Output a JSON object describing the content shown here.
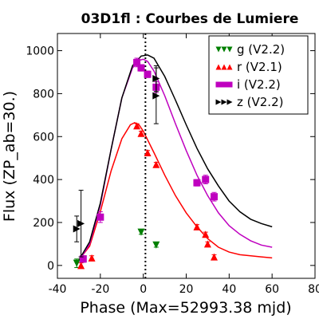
{
  "chart_data": {
    "type": "scatter",
    "title": "03D1fl : Courbes de Lumiere",
    "xlabel": "Phase (Max=52993.38 mjd)",
    "ylabel": "Flux (ZP_ab=30.)",
    "xlim": [
      -40,
      80
    ],
    "ylim": [
      -60,
      1080
    ],
    "xticks": [
      -40,
      -20,
      0,
      20,
      40,
      60,
      80
    ],
    "yticks": [
      0,
      200,
      400,
      600,
      800,
      1000
    ],
    "xtick_labels": [
      "-40",
      "-20",
      "0",
      "20",
      "40",
      "60",
      "80"
    ],
    "ytick_labels": [
      "0",
      "200",
      "400",
      "600",
      "800",
      "1000"
    ],
    "max_phase_line": 1,
    "legend_position": "top-right",
    "series": [
      {
        "name": "g (V2.2)",
        "color": "#007f00",
        "marker": "triangle-down",
        "points": [
          {
            "x": -31,
            "y": 10,
            "err": 20
          },
          {
            "x": -28,
            "y": 30,
            "err": 15
          },
          {
            "x": -1,
            "y": 155,
            "err": 10
          },
          {
            "x": 6,
            "y": 95,
            "err": 10
          }
        ],
        "curve": []
      },
      {
        "name": "r (V2.1)",
        "color": "#ff0000",
        "marker": "triangle-up",
        "points": [
          {
            "x": -29,
            "y": 0,
            "err": 12
          },
          {
            "x": -24,
            "y": 35,
            "err": 10
          },
          {
            "x": -3,
            "y": 650,
            "err": 10
          },
          {
            "x": -1,
            "y": 615,
            "err": 10
          },
          {
            "x": 2,
            "y": 525,
            "err": 10
          },
          {
            "x": 6,
            "y": 470,
            "err": 10
          },
          {
            "x": 25,
            "y": 180,
            "err": 10
          },
          {
            "x": 29,
            "y": 145,
            "err": 10
          },
          {
            "x": 30,
            "y": 100,
            "err": 10
          },
          {
            "x": 33,
            "y": 40,
            "err": 10
          }
        ],
        "curve": [
          {
            "x": -30,
            "y": 25
          },
          {
            "x": -25,
            "y": 90
          },
          {
            "x": -20,
            "y": 250
          },
          {
            "x": -15,
            "y": 440
          },
          {
            "x": -10,
            "y": 590
          },
          {
            "x": -6,
            "y": 655
          },
          {
            "x": -4,
            "y": 665
          },
          {
            "x": -2,
            "y": 655
          },
          {
            "x": 0,
            "y": 625
          },
          {
            "x": 5,
            "y": 525
          },
          {
            "x": 10,
            "y": 420
          },
          {
            "x": 15,
            "y": 325
          },
          {
            "x": 20,
            "y": 245
          },
          {
            "x": 25,
            "y": 180
          },
          {
            "x": 30,
            "y": 125
          },
          {
            "x": 35,
            "y": 85
          },
          {
            "x": 40,
            "y": 62
          },
          {
            "x": 45,
            "y": 50
          },
          {
            "x": 50,
            "y": 45
          },
          {
            "x": 55,
            "y": 40
          },
          {
            "x": 60,
            "y": 35
          }
        ]
      },
      {
        "name": "i (V2.2)",
        "color": "#bf00bf",
        "marker": "square",
        "points": [
          {
            "x": -28,
            "y": 30,
            "err": 15
          },
          {
            "x": -20,
            "y": 225,
            "err": 25
          },
          {
            "x": -3,
            "y": 945,
            "err": 20
          },
          {
            "x": -1,
            "y": 920,
            "err": 15
          },
          {
            "x": 2,
            "y": 890,
            "err": 15
          },
          {
            "x": 6,
            "y": 830,
            "err": 25
          },
          {
            "x": 25,
            "y": 385,
            "err": 15
          },
          {
            "x": 29,
            "y": 400,
            "err": 20
          },
          {
            "x": 33,
            "y": 320,
            "err": 20
          }
        ],
        "curve": [
          {
            "x": -30,
            "y": 20
          },
          {
            "x": -25,
            "y": 100
          },
          {
            "x": -20,
            "y": 280
          },
          {
            "x": -15,
            "y": 540
          },
          {
            "x": -10,
            "y": 780
          },
          {
            "x": -5,
            "y": 920
          },
          {
            "x": -2,
            "y": 955
          },
          {
            "x": 0,
            "y": 960
          },
          {
            "x": 2,
            "y": 950
          },
          {
            "x": 5,
            "y": 905
          },
          {
            "x": 10,
            "y": 790
          },
          {
            "x": 15,
            "y": 660
          },
          {
            "x": 20,
            "y": 535
          },
          {
            "x": 25,
            "y": 420
          },
          {
            "x": 30,
            "y": 325
          },
          {
            "x": 35,
            "y": 245
          },
          {
            "x": 40,
            "y": 185
          },
          {
            "x": 45,
            "y": 145
          },
          {
            "x": 50,
            "y": 115
          },
          {
            "x": 55,
            "y": 95
          },
          {
            "x": 60,
            "y": 85
          }
        ]
      },
      {
        "name": "z (V2.2)",
        "color": "#000000",
        "marker": "triangle-right",
        "points": [
          {
            "x": -31,
            "y": 170,
            "err": 60
          },
          {
            "x": -29,
            "y": 195,
            "err": 155
          },
          {
            "x": 6,
            "y": 790,
            "err": 130
          },
          {
            "x": 6,
            "y": 870,
            "err": 60
          }
        ],
        "curve": [
          {
            "x": -30,
            "y": 25
          },
          {
            "x": -25,
            "y": 110
          },
          {
            "x": -20,
            "y": 290
          },
          {
            "x": -15,
            "y": 540
          },
          {
            "x": -10,
            "y": 780
          },
          {
            "x": -5,
            "y": 930
          },
          {
            "x": -1,
            "y": 975
          },
          {
            "x": 2,
            "y": 980
          },
          {
            "x": 5,
            "y": 965
          },
          {
            "x": 10,
            "y": 880
          },
          {
            "x": 15,
            "y": 770
          },
          {
            "x": 20,
            "y": 655
          },
          {
            "x": 25,
            "y": 545
          },
          {
            "x": 30,
            "y": 450
          },
          {
            "x": 35,
            "y": 370
          },
          {
            "x": 40,
            "y": 300
          },
          {
            "x": 45,
            "y": 250
          },
          {
            "x": 50,
            "y": 215
          },
          {
            "x": 55,
            "y": 195
          },
          {
            "x": 60,
            "y": 180
          }
        ]
      }
    ]
  }
}
